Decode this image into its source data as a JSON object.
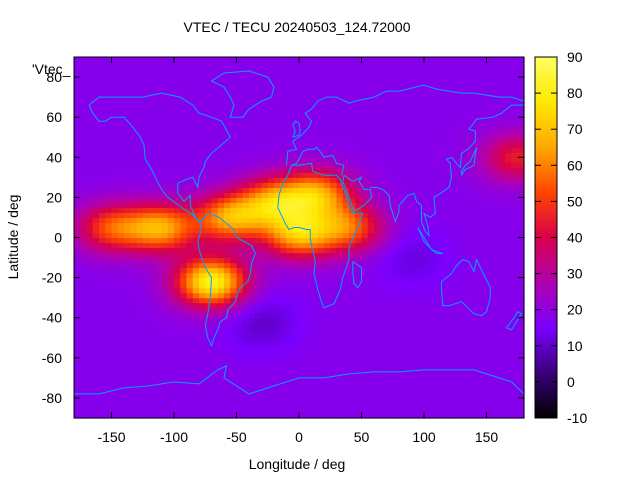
{
  "chart_data": {
    "type": "heatmap",
    "title": "VTEC / TECU 20240503_124.72000",
    "xlabel": "Longitude / deg",
    "ylabel": "Latitude / deg",
    "key_label": "'Vtec_",
    "xlim": [
      -180,
      180
    ],
    "ylim": [
      -90,
      90
    ],
    "xticks": [
      -150,
      -100,
      -50,
      0,
      50,
      100,
      150
    ],
    "yticks": [
      -80,
      -60,
      -40,
      -20,
      0,
      20,
      40,
      60,
      80
    ],
    "colorbar": {
      "range": [
        -10,
        90
      ],
      "ticks": [
        -10,
        0,
        10,
        20,
        30,
        40,
        50,
        60,
        70,
        80,
        90
      ],
      "palette": [
        "#000000",
        "#3a007a",
        "#7a00ff",
        "#b000b0",
        "#d8004a",
        "#ff4500",
        "#ffa800",
        "#ffe800",
        "#ffff60"
      ]
    },
    "field": {
      "background": 18,
      "enhancements": [
        {
          "lon": -150,
          "lat": 5,
          "peak": 52
        },
        {
          "lon": -110,
          "lat": 5,
          "peak": 64
        },
        {
          "lon": -70,
          "lat": -22,
          "peak": 82
        },
        {
          "lon": -55,
          "lat": 10,
          "peak": 64
        },
        {
          "lon": -20,
          "lat": 18,
          "peak": 60
        },
        {
          "lon": 15,
          "lat": 22,
          "peak": 62
        },
        {
          "lon": 0,
          "lat": 2,
          "peak": 66
        },
        {
          "lon": 40,
          "lat": 5,
          "peak": 54
        },
        {
          "lon": 175,
          "lat": 40,
          "peak": 45
        }
      ],
      "depletions": [
        {
          "lon": -30,
          "lat": -42,
          "value": 10
        },
        {
          "lon": 90,
          "lat": -10,
          "value": 12
        }
      ]
    },
    "coastline_color": "#00a0ff"
  }
}
